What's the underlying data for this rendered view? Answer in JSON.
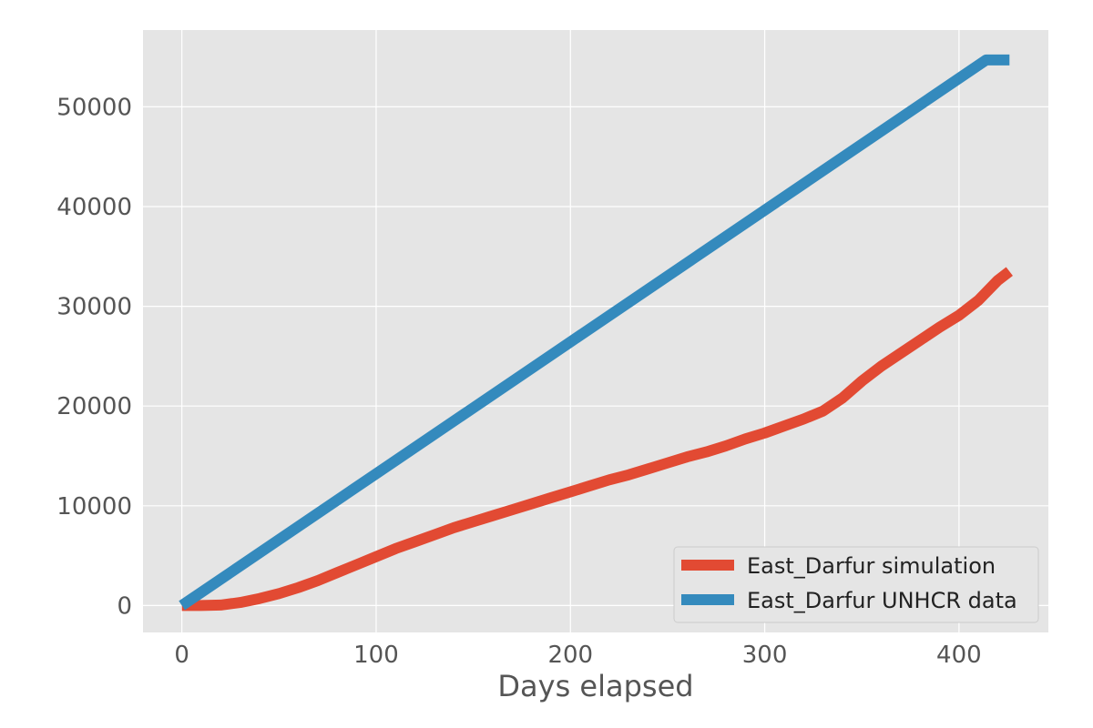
{
  "chart_data": {
    "type": "line",
    "title": "",
    "xlabel": "Days elapsed",
    "ylabel": "",
    "xlim": [
      -20,
      446
    ],
    "ylim": [
      -2700,
      57700
    ],
    "xticks": [
      0,
      100,
      200,
      300,
      400
    ],
    "yticks": [
      0,
      10000,
      20000,
      30000,
      40000,
      50000
    ],
    "grid": true,
    "legend_position": "bottom-right",
    "colors": {
      "background": "#e5e5e5",
      "grid": "#ffffff",
      "tick_label": "#555555"
    },
    "series": [
      {
        "name": "East_Darfur simulation",
        "color": "#e24a33",
        "x": [
          0,
          10,
          20,
          30,
          40,
          50,
          60,
          70,
          80,
          90,
          100,
          110,
          120,
          130,
          140,
          150,
          160,
          170,
          180,
          190,
          200,
          210,
          220,
          230,
          240,
          250,
          260,
          270,
          280,
          290,
          300,
          310,
          320,
          330,
          340,
          350,
          360,
          370,
          380,
          390,
          400,
          410,
          420,
          426
        ],
        "y": [
          0,
          0,
          50,
          300,
          700,
          1200,
          1800,
          2500,
          3300,
          4100,
          4900,
          5700,
          6400,
          7100,
          7800,
          8400,
          9000,
          9600,
          10200,
          10800,
          11400,
          12000,
          12600,
          13100,
          13700,
          14300,
          14900,
          15400,
          16000,
          16700,
          17300,
          18000,
          18700,
          19500,
          20800,
          22500,
          24000,
          25300,
          26600,
          27900,
          29100,
          30600,
          32600,
          33500
        ]
      },
      {
        "name": "East_Darfur UNHCR data",
        "color": "#348abd",
        "x": [
          0,
          414,
          426
        ],
        "y": [
          0,
          54700,
          54700
        ]
      }
    ]
  }
}
